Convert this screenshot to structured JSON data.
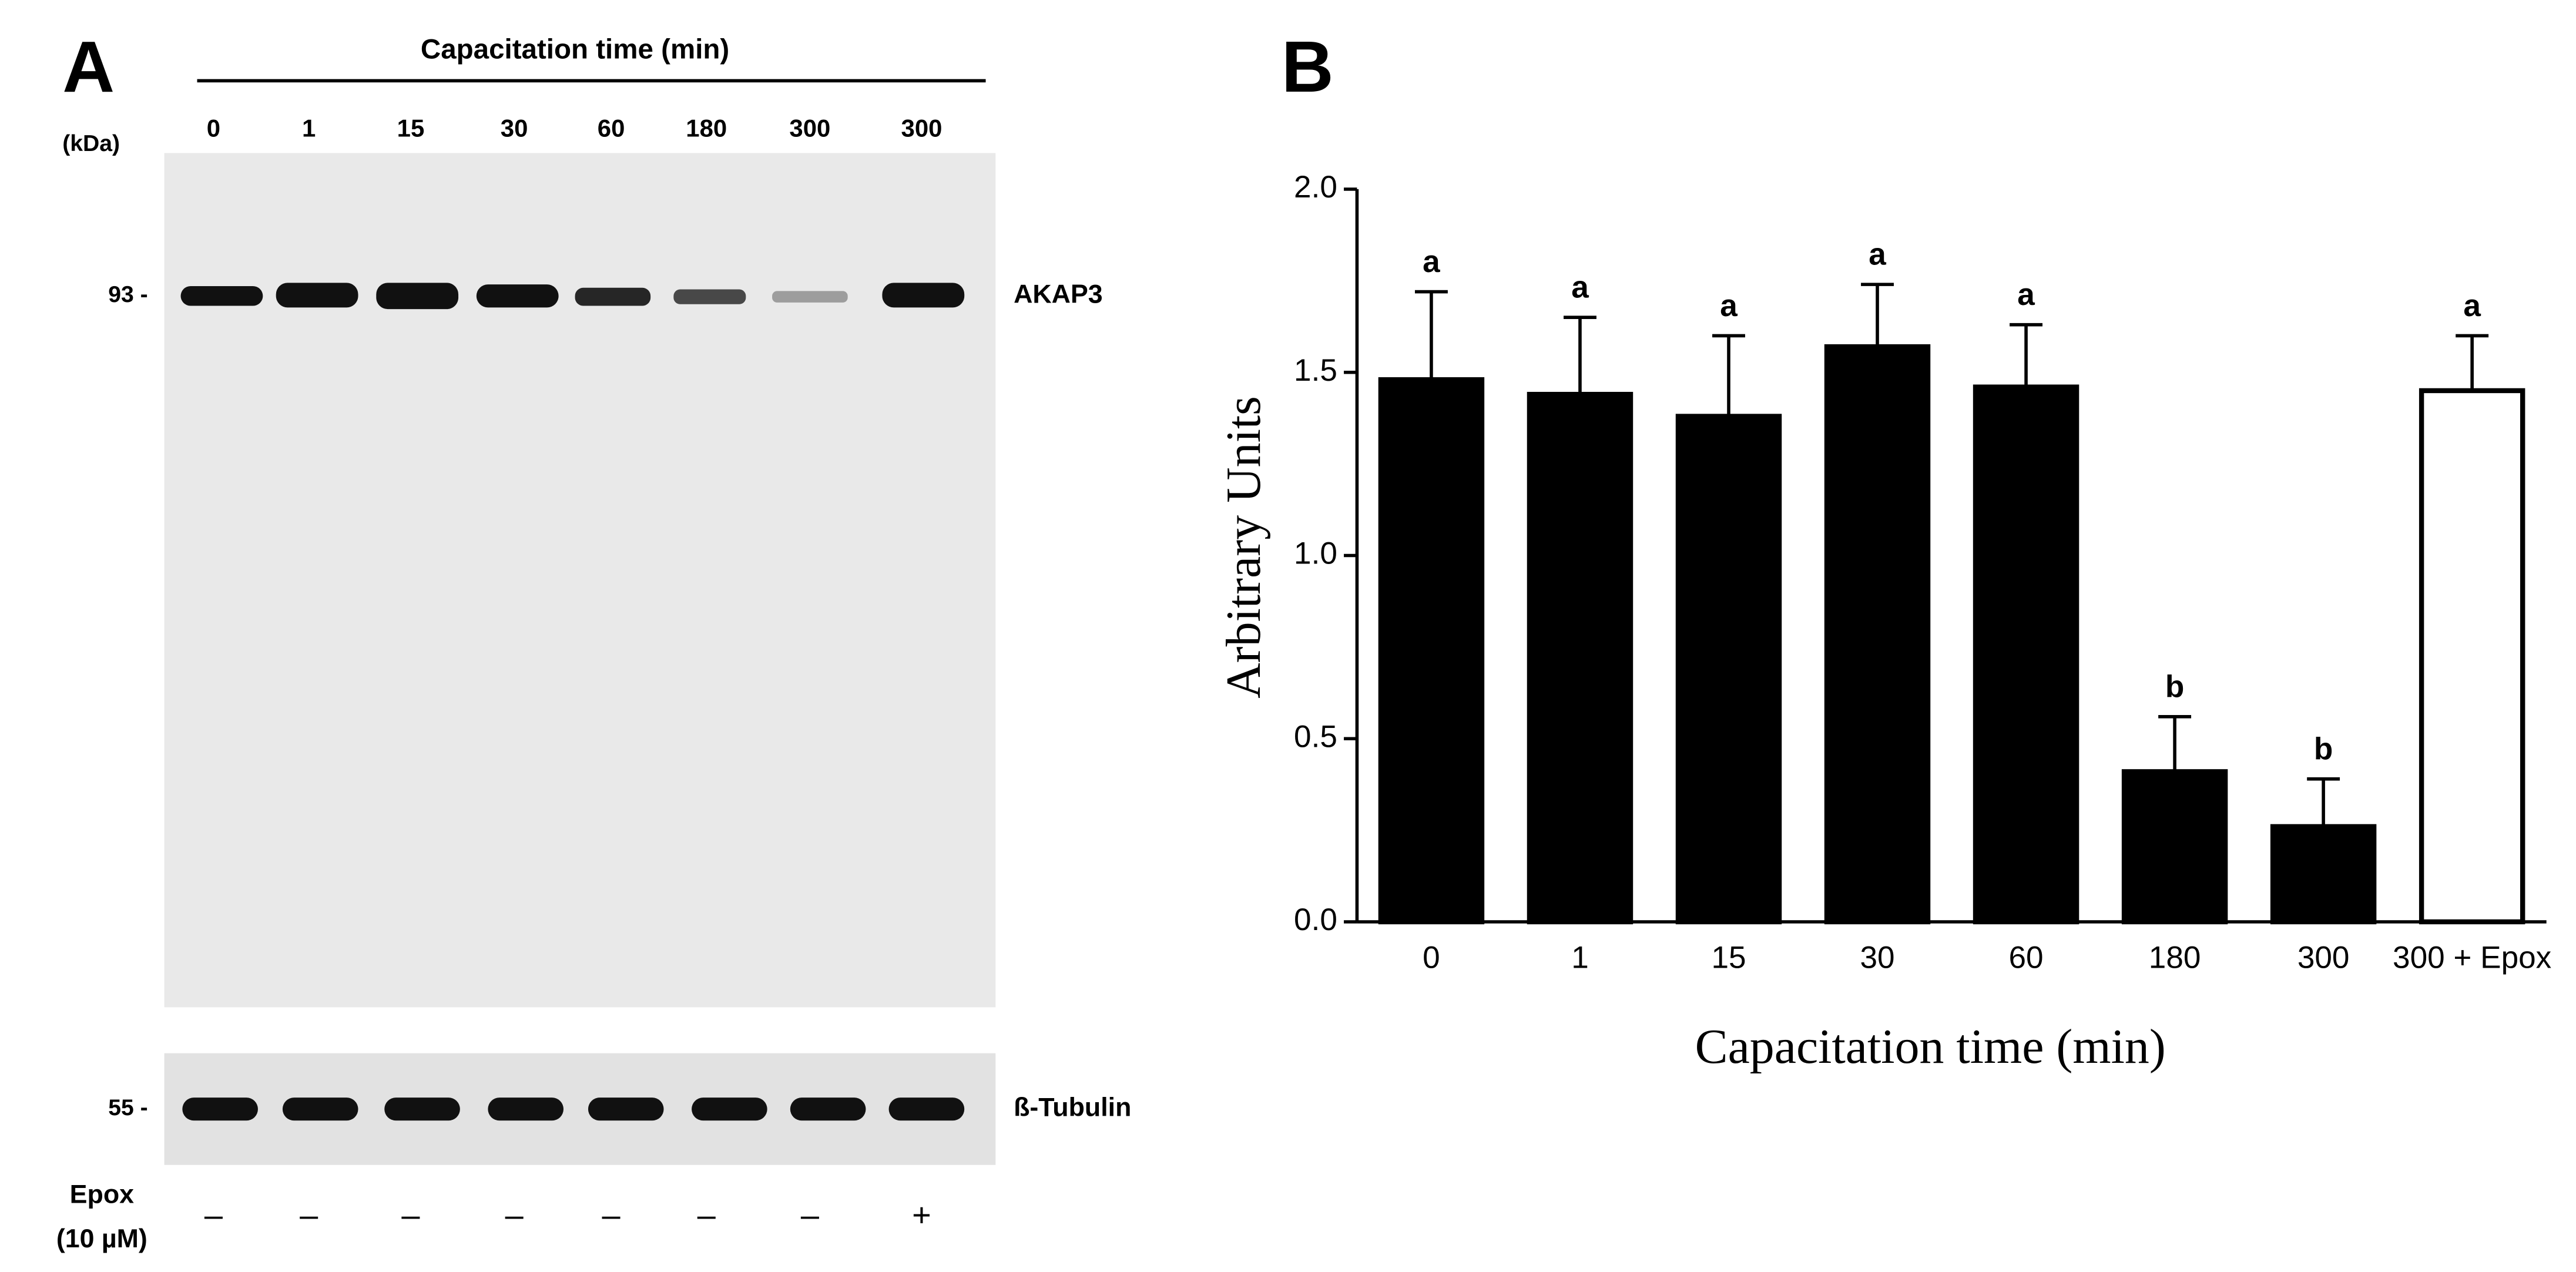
{
  "panel_a": {
    "panel_label": "A",
    "header": "Capacitation time (min)",
    "unit_label": "(kDa)",
    "lanes": [
      "0",
      "1",
      "15",
      "30",
      "60",
      "180",
      "300",
      "300"
    ],
    "markers": [
      "93 -",
      "55 -"
    ],
    "proteins": [
      "AKAP3",
      "ß-Tubulin"
    ],
    "treatment_label": [
      "Epox",
      "(10 µM)"
    ],
    "treatments": [
      "–",
      "–",
      "–",
      "–",
      "–",
      "–",
      "–",
      "+"
    ]
  },
  "chart_data": {
    "type": "bar",
    "panel_label": "B",
    "y_label": "Arbitrary Units",
    "x_label": "Capacitation time (min)",
    "categories": [
      "0",
      "1",
      "15",
      "30",
      "60",
      "180",
      "300",
      "300 + Epox"
    ],
    "values": [
      1.48,
      1.44,
      1.38,
      1.57,
      1.46,
      0.41,
      0.26,
      1.45
    ],
    "errors": [
      0.24,
      0.21,
      0.22,
      0.17,
      0.17,
      0.15,
      0.13,
      0.15
    ],
    "annotations": [
      "a",
      "a",
      "a",
      "a",
      "a",
      "b",
      "b",
      "a"
    ],
    "colors": [
      "#000000",
      "#000000",
      "#000000",
      "#000000",
      "#000000",
      "#000000",
      "#000000",
      "#ffffff"
    ],
    "ylim": [
      0,
      2
    ],
    "yticks": [
      {
        "value": 0,
        "label": "0.0"
      },
      0.5,
      {
        "value": 1,
        "label": "1.0"
      },
      1.5,
      {
        "value": 2,
        "label": "2.0"
      }
    ]
  }
}
